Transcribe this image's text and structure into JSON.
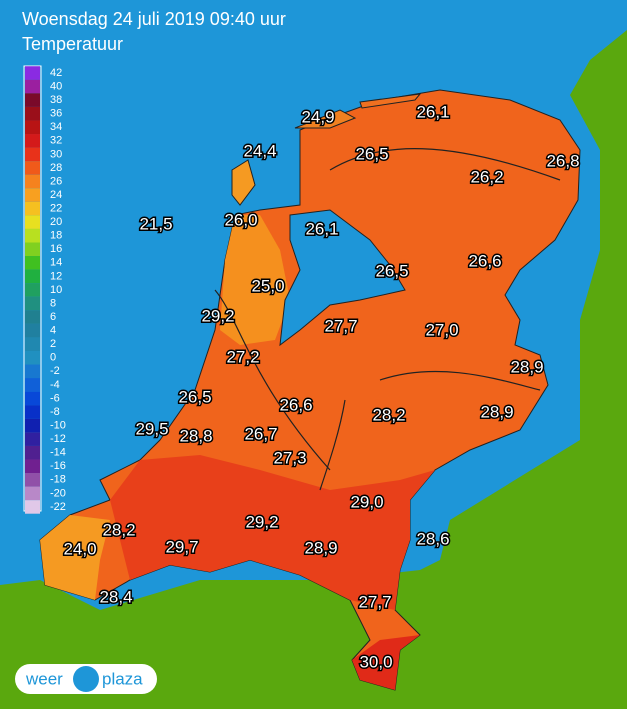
{
  "header": {
    "title": "Woensdag 24 juli 2019 09:40 uur",
    "subtitle": "Temperatuur"
  },
  "legend": {
    "ticks": [
      42,
      40,
      38,
      36,
      34,
      32,
      30,
      28,
      26,
      24,
      22,
      20,
      18,
      16,
      14,
      12,
      10,
      8,
      6,
      4,
      2,
      0,
      -2,
      -4,
      -6,
      -8,
      -10,
      -12,
      -14,
      -16,
      -18,
      -20,
      -22
    ],
    "colors": [
      "#8a2be2",
      "#9b1fa0",
      "#7a0a2a",
      "#9a0f1a",
      "#b81414",
      "#d41a1a",
      "#e8321a",
      "#f05a1a",
      "#f5821e",
      "#f8a020",
      "#f5c020",
      "#e8e020",
      "#b8e020",
      "#80d020",
      "#40c020",
      "#20b040",
      "#20a060",
      "#209080",
      "#208090",
      "#2080a0",
      "#2088b0",
      "#2090c0",
      "#1878d0",
      "#1060d8",
      "#0848d8",
      "#0830c8",
      "#1020b0",
      "#3020a0",
      "#502090",
      "#702090",
      "#9050a8",
      "#b888c8",
      "#e0c8e8"
    ]
  },
  "readings": [
    "24,9",
    "26,1",
    "24,4",
    "26,5",
    "26,8",
    "26,2",
    "21,5",
    "26,0",
    "26,1",
    "26,5",
    "26,6",
    "25,0",
    "29,2",
    "27,7",
    "27,0",
    "27,2",
    "28,9",
    "26,5",
    "26,6",
    "28,2",
    "28,9",
    "29,5",
    "28,8",
    "26,7",
    "27,3",
    "29,0",
    "28,2",
    "29,2",
    "24,0",
    "29,7",
    "28,9",
    "28,6",
    "28,4",
    "27,7",
    "30,0"
  ],
  "logo": {
    "left": "weer",
    "right": "plaza"
  }
}
